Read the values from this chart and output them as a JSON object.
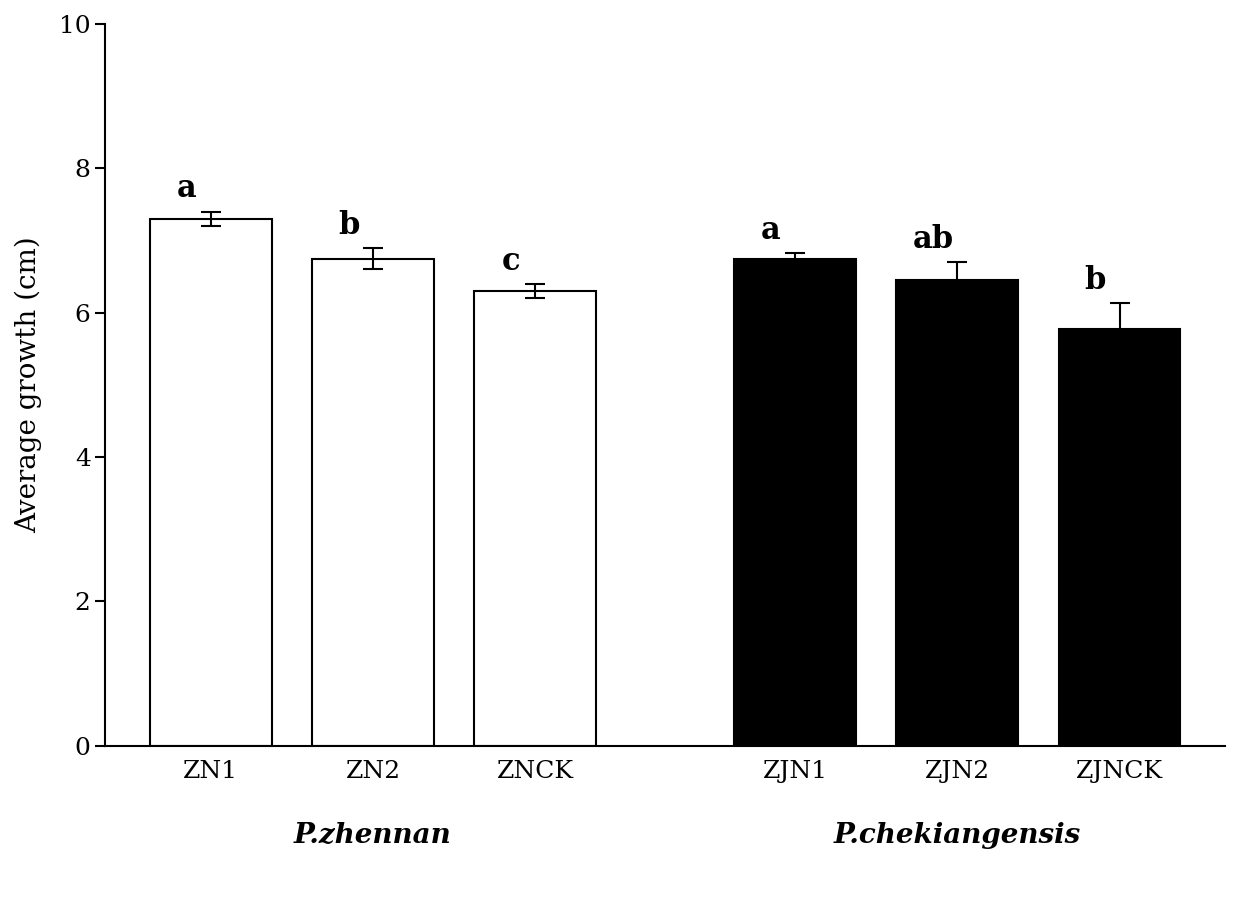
{
  "categories": [
    "ZN1",
    "ZN2",
    "ZNCK",
    "ZJN1",
    "ZJN2",
    "ZJNCK"
  ],
  "values": [
    7.3,
    6.75,
    6.3,
    6.75,
    6.45,
    5.78
  ],
  "errors": [
    0.1,
    0.15,
    0.1,
    0.08,
    0.25,
    0.35
  ],
  "bar_colors": [
    "white",
    "white",
    "white",
    "black",
    "black",
    "black"
  ],
  "bar_edgecolors": [
    "black",
    "black",
    "black",
    "black",
    "black",
    "black"
  ],
  "significance_labels": [
    "a",
    "b",
    "c",
    "a",
    "ab",
    "b"
  ],
  "ylabel": "Average growth (cm)",
  "ylim": [
    0,
    10
  ],
  "yticks": [
    0,
    2,
    4,
    6,
    8,
    10
  ],
  "group_labels": [
    "P.zhennan",
    "P.chekiangensis"
  ],
  "background_color": "white",
  "bar_width": 0.75,
  "sig_fontsize": 22,
  "axis_label_fontsize": 20,
  "tick_fontsize": 18,
  "group_label_fontsize": 20,
  "positions": [
    1.0,
    2.0,
    3.0,
    4.6,
    5.6,
    6.6
  ],
  "xlim": [
    0.35,
    7.25
  ],
  "group_centers": [
    2.0,
    5.6
  ]
}
